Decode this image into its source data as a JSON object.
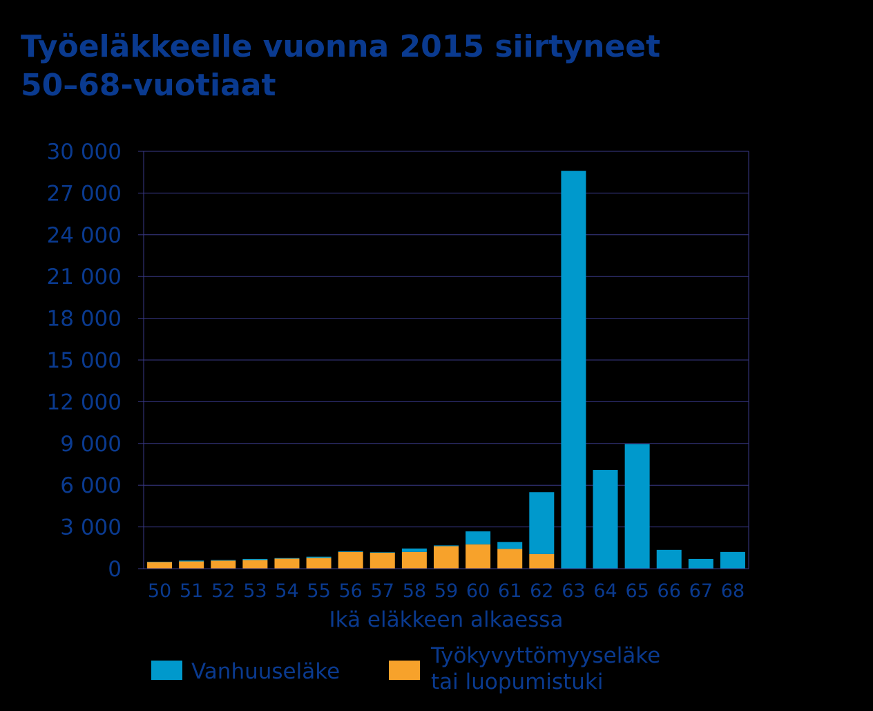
{
  "title": {
    "line1": "Työeläkkeelle vuonna 2015 siirtyneet",
    "line2": "50–68-vuotiaat"
  },
  "colors": {
    "text": "#0a3a8f",
    "vanhuus": "#0099cc",
    "tyokyvyttomyys": "#f7a22b",
    "grid": "#3a3a8a"
  },
  "chart_data": {
    "type": "bar",
    "stacked": true,
    "categories": [
      "50",
      "51",
      "52",
      "53",
      "54",
      "55",
      "56",
      "57",
      "58",
      "59",
      "60",
      "61",
      "62",
      "63",
      "64",
      "65",
      "66",
      "67",
      "68"
    ],
    "series": [
      {
        "name": "Työkyvyttömyyseläke tai luopumistuki",
        "values": [
          480,
          520,
          580,
          620,
          720,
          780,
          1200,
          1150,
          1200,
          1620,
          1750,
          1420,
          1050,
          0,
          0,
          0,
          0,
          0,
          0
        ]
      },
      {
        "name": "Vanhuuseläke",
        "values": [
          20,
          60,
          40,
          80,
          40,
          80,
          50,
          30,
          250,
          50,
          930,
          500,
          4450,
          28600,
          7100,
          8950,
          1350,
          700,
          1200
        ]
      }
    ],
    "xlabel": "Ikä eläkkeen alkaessa",
    "ylabel": "",
    "ylim": [
      0,
      30000
    ],
    "yticks": [
      {
        "value": 0,
        "label": "0"
      },
      {
        "value": 3000,
        "label": "3 000"
      },
      {
        "value": 6000,
        "label": "6 000"
      },
      {
        "value": 9000,
        "label": "9 000"
      },
      {
        "value": 12000,
        "label": "12 000"
      },
      {
        "value": 15000,
        "label": "15 000"
      },
      {
        "value": 18000,
        "label": "18 000"
      },
      {
        "value": 21000,
        "label": "21 000"
      },
      {
        "value": 24000,
        "label": "24 000"
      },
      {
        "value": 27000,
        "label": "27 000"
      },
      {
        "value": 30000,
        "label": "30 000"
      }
    ],
    "grid": true,
    "legend_position": "bottom"
  },
  "legend": {
    "item1": "Vanhuuseläke",
    "item2_line1": "Työkyvyttömyyseläke",
    "item2_line2": "tai luopumistuki"
  }
}
